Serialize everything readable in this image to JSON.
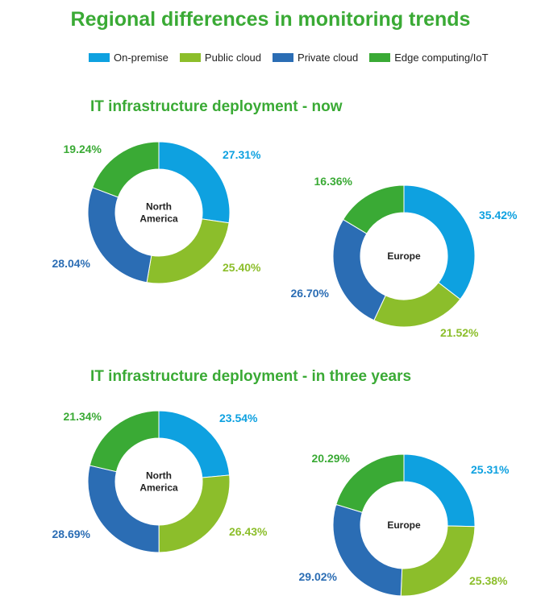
{
  "title": "Regional differences in monitoring trends",
  "legend": [
    {
      "label": "On-premise",
      "color": "#0ea1e0"
    },
    {
      "label": "Public cloud",
      "color": "#8cbe2b"
    },
    {
      "label": "Private cloud",
      "color": "#2b6db4"
    },
    {
      "label": "Edge computing/IoT",
      "color": "#3aaa35"
    }
  ],
  "sections": [
    {
      "title": "IT infrastructure deployment - now"
    },
    {
      "title": "IT infrastructure deployment - in three years"
    }
  ],
  "chart_data": [
    {
      "type": "pie",
      "group": "IT infrastructure deployment - now",
      "center_label": [
        "North",
        "America"
      ],
      "series": [
        {
          "name": "On-premise",
          "value": 27.31,
          "label": "27.31%"
        },
        {
          "name": "Public cloud",
          "value": 25.4,
          "label": "25.40%"
        },
        {
          "name": "Private cloud",
          "value": 28.04,
          "label": "28.04%"
        },
        {
          "name": "Edge computing/IoT",
          "value": 19.24,
          "label": "19.24%"
        }
      ]
    },
    {
      "type": "pie",
      "group": "IT infrastructure deployment - now",
      "center_label": [
        "Europe"
      ],
      "series": [
        {
          "name": "On-premise",
          "value": 35.42,
          "label": "35.42%"
        },
        {
          "name": "Public cloud",
          "value": 21.52,
          "label": "21.52%"
        },
        {
          "name": "Private cloud",
          "value": 26.7,
          "label": "26.70%"
        },
        {
          "name": "Edge computing/IoT",
          "value": 16.36,
          "label": "16.36%"
        }
      ]
    },
    {
      "type": "pie",
      "group": "IT infrastructure deployment - in three years",
      "center_label": [
        "North",
        "America"
      ],
      "series": [
        {
          "name": "On-premise",
          "value": 23.54,
          "label": "23.54%"
        },
        {
          "name": "Public cloud",
          "value": 26.43,
          "label": "26.43%"
        },
        {
          "name": "Private cloud",
          "value": 28.69,
          "label": "28.69%"
        },
        {
          "name": "Edge computing/IoT",
          "value": 21.34,
          "label": "21.34%"
        }
      ]
    },
    {
      "type": "pie",
      "group": "IT infrastructure deployment - in three years",
      "center_label": [
        "Europe"
      ],
      "series": [
        {
          "name": "On-premise",
          "value": 25.31,
          "label": "25.31%"
        },
        {
          "name": "Public cloud",
          "value": 25.38,
          "label": "25.38%"
        },
        {
          "name": "Private cloud",
          "value": 29.02,
          "label": "29.02%"
        },
        {
          "name": "Edge computing/IoT",
          "value": 20.29,
          "label": "20.29%"
        }
      ]
    }
  ]
}
